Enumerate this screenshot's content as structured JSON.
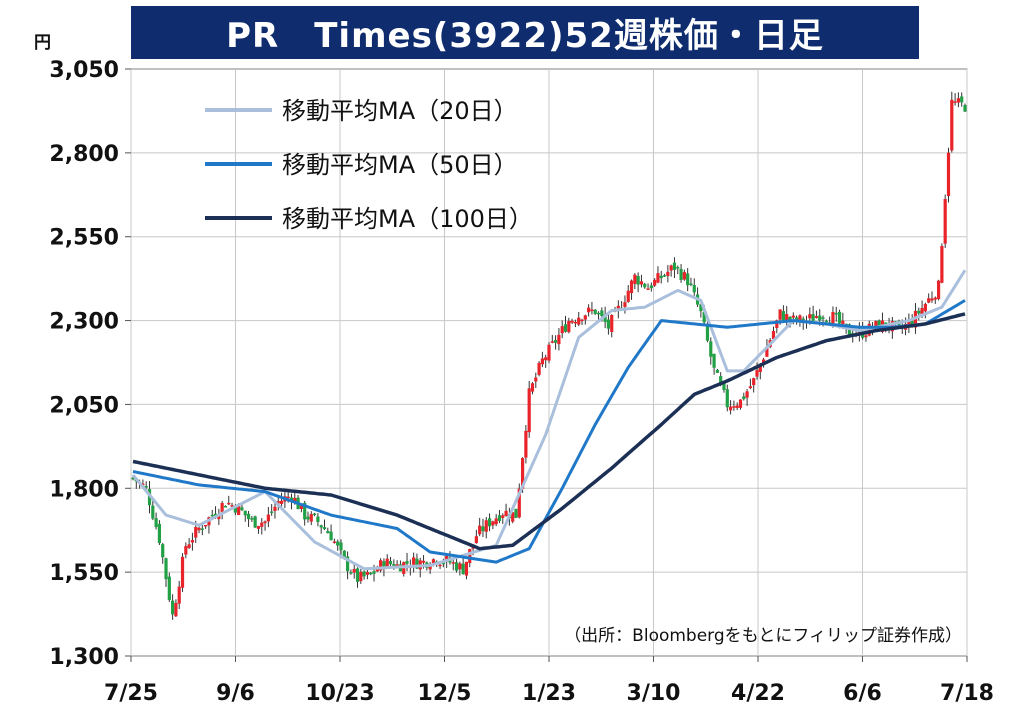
{
  "chart_data": {
    "type": "candlestick",
    "title": "PR　Times(3922)52週株価・日足",
    "unit": "円",
    "source": "（出所：Bloombergをもとにフィリップ証券作成）",
    "y_ticks": [
      "1,300",
      "1,550",
      "1,800",
      "2,050",
      "2,300",
      "2,550",
      "2,800",
      "3,050"
    ],
    "y_values": [
      1300,
      1550,
      1800,
      2050,
      2300,
      2550,
      2800,
      3050
    ],
    "ylim": [
      1300,
      3050
    ],
    "x_ticks": [
      "7/25",
      "9/6",
      "10/23",
      "12/5",
      "1/23",
      "3/10",
      "4/22",
      "6/6",
      "7/18"
    ],
    "grid": true,
    "legend": [
      {
        "label": "移動平均MA（20日）",
        "color": "#a9bfdc"
      },
      {
        "label": "移動平均MA（50日）",
        "color": "#1f78c8"
      },
      {
        "label": "移動平均MA（100日）",
        "color": "#1c2f55"
      }
    ],
    "candle_colors": {
      "up": "#e8242a",
      "down": "#22a046"
    },
    "price_anchors": {
      "x": [
        0,
        4,
        8,
        12,
        16,
        20,
        24,
        28,
        32,
        36,
        40,
        44,
        48,
        52,
        56,
        60,
        64,
        68,
        72,
        76,
        80,
        84,
        88,
        92,
        96,
        100,
        104,
        108,
        112,
        116,
        120,
        124,
        128,
        132,
        136,
        140,
        144,
        148,
        152,
        156,
        160,
        164,
        168,
        172,
        176,
        180,
        184,
        188,
        192,
        196,
        200,
        204,
        208,
        212,
        216,
        220,
        224,
        228,
        232,
        236,
        240,
        244,
        248,
        252
      ],
      "close": [
        1830,
        1800,
        1650,
        1420,
        1630,
        1680,
        1720,
        1760,
        1740,
        1700,
        1700,
        1760,
        1780,
        1720,
        1700,
        1660,
        1580,
        1530,
        1540,
        1580,
        1570,
        1580,
        1580,
        1590,
        1580,
        1560,
        1660,
        1700,
        1730,
        1720,
        2080,
        2180,
        2240,
        2300,
        2320,
        2330,
        2280,
        2350,
        2430,
        2400,
        2430,
        2460,
        2420,
        2320,
        2150,
        2050,
        2060,
        2120,
        2220,
        2320,
        2300,
        2300,
        2320,
        2310,
        2270,
        2260,
        2280,
        2290,
        2270,
        2300,
        2350,
        2400,
        2950,
        2940
      ]
    },
    "ma20": {
      "x": [
        0,
        10,
        20,
        40,
        55,
        70,
        90,
        110,
        125,
        135,
        145,
        155,
        165,
        172,
        180,
        185,
        190,
        200,
        210,
        220,
        235,
        245,
        252
      ],
      "y": [
        1840,
        1720,
        1690,
        1790,
        1640,
        1560,
        1570,
        1630,
        1960,
        2250,
        2330,
        2340,
        2390,
        2360,
        2150,
        2150,
        2200,
        2300,
        2290,
        2270,
        2300,
        2340,
        2450
      ]
    },
    "ma50": {
      "x": [
        0,
        20,
        40,
        60,
        80,
        90,
        110,
        120,
        130,
        140,
        150,
        160,
        170,
        180,
        190,
        200,
        210,
        220,
        230,
        240,
        252
      ],
      "y": [
        1850,
        1810,
        1790,
        1720,
        1680,
        1610,
        1580,
        1620,
        1800,
        1990,
        2160,
        2300,
        2290,
        2280,
        2290,
        2300,
        2290,
        2280,
        2280,
        2290,
        2360
      ]
    },
    "ma100": {
      "x": [
        0,
        20,
        40,
        60,
        80,
        95,
        105,
        115,
        130,
        145,
        160,
        170,
        180,
        195,
        210,
        225,
        240,
        252
      ],
      "y": [
        1880,
        1840,
        1800,
        1780,
        1720,
        1660,
        1620,
        1630,
        1740,
        1860,
        1990,
        2080,
        2120,
        2190,
        2240,
        2270,
        2290,
        2320
      ]
    }
  }
}
